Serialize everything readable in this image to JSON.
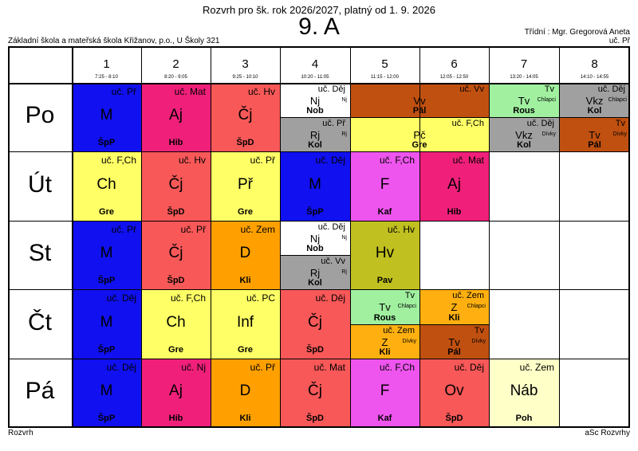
{
  "header": {
    "title": "Rozvrh pro šk. rok 2026/2027, platný od 1. 9. 2026",
    "class_name": "9. A",
    "school": "Základní škola a mateřská škola Křižanov, p.o., U Školy 321",
    "class_teacher": "Třídní : Mgr. Gregorová Aneta",
    "class_teacher_abbr": "uč. Př"
  },
  "footer": {
    "left": "Rozvrh",
    "right": "aSc Rozvrhy"
  },
  "periods": [
    {
      "num": "1",
      "time": "7:25 - 8:10"
    },
    {
      "num": "2",
      "time": "8:20 - 9:05"
    },
    {
      "num": "3",
      "time": "9:25 - 10:10"
    },
    {
      "num": "4",
      "time": "10:20 - 11:05"
    },
    {
      "num": "5",
      "time": "11:15 - 12:00"
    },
    {
      "num": "6",
      "time": "12:05 - 12:50"
    },
    {
      "num": "7",
      "time": "13:20 - 14:05"
    },
    {
      "num": "8",
      "time": "14:10 - 14:55"
    }
  ],
  "days": [
    "Po",
    "Út",
    "St",
    "Čt",
    "Pá"
  ],
  "colors": {
    "M": "#1010f0",
    "Aj": "#f0207a",
    "Čj": "#f85858",
    "Ch": "#ffff66",
    "Př": "#ffff66",
    "D": "#ffa000",
    "Dej": "#ffffff",
    "F": "#ee55ee",
    "Hv": "#c0c020",
    "Vv": "#c05010",
    "Pč": "#ffff66",
    "TvCh": "#a0f0a0",
    "VkzCh": "#a0a0a0",
    "VkzD": "#a0a0a0",
    "TvD": "#c05010",
    "Inf": "#ffff66",
    "ZCh": "#ffb010",
    "ZD": "#ffb010",
    "Nab": "#ffffc8",
    "Ov": "#f85858",
    "Rj": "#a0a0a0",
    "Nj": "#ffffff"
  },
  "lessons": [
    {
      "day": 0,
      "period": 0,
      "span": 1,
      "half": "full",
      "color": "M",
      "subject": "M",
      "teacher": "ŠpP",
      "room": "uč. Př"
    },
    {
      "day": 0,
      "period": 1,
      "span": 1,
      "half": "full",
      "color": "Aj",
      "subject": "Aj",
      "teacher": "Hib",
      "room": "uč. Mat"
    },
    {
      "day": 0,
      "period": 2,
      "span": 1,
      "half": "full",
      "color": "Čj",
      "subject": "Čj",
      "teacher": "ŠpD",
      "room": "uč. Hv"
    },
    {
      "day": 0,
      "period": 3,
      "span": 1,
      "half": "top",
      "color": "Nj",
      "subject": "Nj",
      "teacher": "Nob",
      "room": "uč. Děj",
      "group": "Nj"
    },
    {
      "day": 0,
      "period": 3,
      "span": 1,
      "half": "bottom",
      "color": "Rj",
      "subject": "Rj",
      "teacher": "Kol",
      "room": "uč. Př",
      "group": "Rj"
    },
    {
      "day": 0,
      "period": 4,
      "span": 2,
      "half": "top",
      "color": "Vv",
      "subject": "Vv",
      "teacher": "Pál",
      "room": "uč. Vv"
    },
    {
      "day": 0,
      "period": 4,
      "span": 2,
      "half": "bottom",
      "color": "Pč",
      "subject": "Pč",
      "teacher": "Gre",
      "room": "uč. F,Ch"
    },
    {
      "day": 0,
      "period": 6,
      "span": 1,
      "half": "top",
      "color": "TvCh",
      "subject": "Tv",
      "teacher": "Rous",
      "room": "Tv",
      "group": "Chlapci"
    },
    {
      "day": 0,
      "period": 6,
      "span": 1,
      "half": "bottom",
      "color": "VkzD",
      "subject": "Vkz",
      "teacher": "Kol",
      "room": "uč. Děj",
      "group": "Dívky"
    },
    {
      "day": 0,
      "period": 7,
      "span": 1,
      "half": "top",
      "color": "VkzCh",
      "subject": "Vkz",
      "teacher": "Kol",
      "room": "uč. Děj",
      "group": "Chlapci"
    },
    {
      "day": 0,
      "period": 7,
      "span": 1,
      "half": "bottom",
      "color": "TvD",
      "subject": "Tv",
      "teacher": "Pál",
      "room": "Tv",
      "group": "Dívky"
    },
    {
      "day": 1,
      "period": 0,
      "span": 1,
      "half": "full",
      "color": "Ch",
      "subject": "Ch",
      "teacher": "Gre",
      "room": "uč. F,Ch"
    },
    {
      "day": 1,
      "period": 1,
      "span": 1,
      "half": "full",
      "color": "Čj",
      "subject": "Čj",
      "teacher": "ŠpD",
      "room": "uč. Hv"
    },
    {
      "day": 1,
      "period": 2,
      "span": 1,
      "half": "full",
      "color": "Př",
      "subject": "Př",
      "teacher": "Gre",
      "room": "uč. Př"
    },
    {
      "day": 1,
      "period": 3,
      "span": 1,
      "half": "full",
      "color": "M",
      "subject": "M",
      "teacher": "ŠpP",
      "room": "uč. Děj"
    },
    {
      "day": 1,
      "period": 4,
      "span": 1,
      "half": "full",
      "color": "F",
      "subject": "F",
      "teacher": "Kaf",
      "room": "uč. F,Ch"
    },
    {
      "day": 1,
      "period": 5,
      "span": 1,
      "half": "full",
      "color": "Aj",
      "subject": "Aj",
      "teacher": "Hib",
      "room": "uč. Mat"
    },
    {
      "day": 2,
      "period": 0,
      "span": 1,
      "half": "full",
      "color": "M",
      "subject": "M",
      "teacher": "ŠpP",
      "room": "uč. Př"
    },
    {
      "day": 2,
      "period": 1,
      "span": 1,
      "half": "full",
      "color": "Čj",
      "subject": "Čj",
      "teacher": "ŠpD",
      "room": "uč. Př"
    },
    {
      "day": 2,
      "period": 2,
      "span": 1,
      "half": "full",
      "color": "D",
      "subject": "D",
      "teacher": "Kli",
      "room": "uč. Zem"
    },
    {
      "day": 2,
      "period": 3,
      "span": 1,
      "half": "top",
      "color": "Nj",
      "subject": "Nj",
      "teacher": "Nob",
      "room": "uč. Děj",
      "group": "Nj"
    },
    {
      "day": 2,
      "period": 3,
      "span": 1,
      "half": "bottom",
      "color": "Rj",
      "subject": "Rj",
      "teacher": "Kol",
      "room": "uč. Vv",
      "group": "Rj"
    },
    {
      "day": 2,
      "period": 4,
      "span": 1,
      "half": "full",
      "color": "Hv",
      "subject": "Hv",
      "teacher": "Pav",
      "room": "uč. Hv"
    },
    {
      "day": 3,
      "period": 0,
      "span": 1,
      "half": "full",
      "color": "M",
      "subject": "M",
      "teacher": "ŠpP",
      "room": "uč. Děj"
    },
    {
      "day": 3,
      "period": 1,
      "span": 1,
      "half": "full",
      "color": "Ch",
      "subject": "Ch",
      "teacher": "Gre",
      "room": "uč. F,Ch"
    },
    {
      "day": 3,
      "period": 2,
      "span": 1,
      "half": "full",
      "color": "Inf",
      "subject": "Inf",
      "teacher": "Gre",
      "room": "uč. PC"
    },
    {
      "day": 3,
      "period": 3,
      "span": 1,
      "half": "full",
      "color": "Čj",
      "subject": "Čj",
      "teacher": "ŠpD",
      "room": "uč. Děj"
    },
    {
      "day": 3,
      "period": 4,
      "span": 1,
      "half": "top",
      "color": "TvCh",
      "subject": "Tv",
      "teacher": "Rous",
      "room": "Tv",
      "group": "Chlapci"
    },
    {
      "day": 3,
      "period": 4,
      "span": 1,
      "half": "bottom",
      "color": "ZD",
      "subject": "Z",
      "teacher": "Kli",
      "room": "uč. Zem",
      "group": "Dívky"
    },
    {
      "day": 3,
      "period": 5,
      "span": 1,
      "half": "top",
      "color": "ZCh",
      "subject": "Z",
      "teacher": "Kli",
      "room": "uč. Zem",
      "group": "Chlapci"
    },
    {
      "day": 3,
      "period": 5,
      "span": 1,
      "half": "bottom",
      "color": "TvD",
      "subject": "Tv",
      "teacher": "Pál",
      "room": "Tv",
      "group": "Dívky"
    },
    {
      "day": 4,
      "period": 0,
      "span": 1,
      "half": "full",
      "color": "M",
      "subject": "M",
      "teacher": "ŠpP",
      "room": "uč. Děj"
    },
    {
      "day": 4,
      "period": 1,
      "span": 1,
      "half": "full",
      "color": "Aj",
      "subject": "Aj",
      "teacher": "Hib",
      "room": "uč. Nj"
    },
    {
      "day": 4,
      "period": 2,
      "span": 1,
      "half": "full",
      "color": "D",
      "subject": "D",
      "teacher": "Kli",
      "room": "uč. Př"
    },
    {
      "day": 4,
      "period": 3,
      "span": 1,
      "half": "full",
      "color": "Čj",
      "subject": "Čj",
      "teacher": "ŠpD",
      "room": "uč. Mat"
    },
    {
      "day": 4,
      "period": 4,
      "span": 1,
      "half": "full",
      "color": "F",
      "subject": "F",
      "teacher": "Kaf",
      "room": "uč. F,Ch"
    },
    {
      "day": 4,
      "period": 5,
      "span": 1,
      "half": "full",
      "color": "Ov",
      "subject": "Ov",
      "teacher": "ŠpD",
      "room": "uč. Děj"
    },
    {
      "day": 4,
      "period": 6,
      "span": 1,
      "half": "full",
      "color": "Nab",
      "subject": "Náb",
      "teacher": "Poh",
      "room": "uč. Zem"
    }
  ]
}
